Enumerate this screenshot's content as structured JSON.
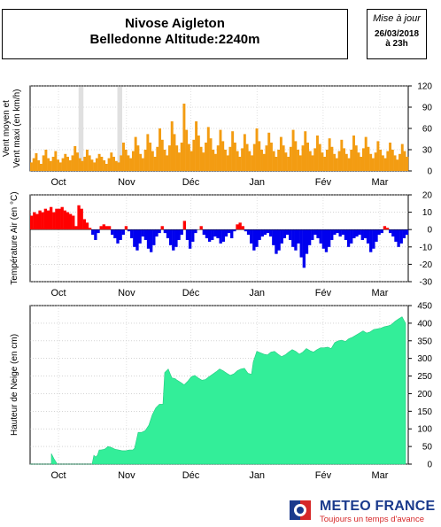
{
  "header": {
    "title_line1": "Nivose Aigleton",
    "title_line2": "Belledonne Altitude:2240m",
    "update_label": "Mise à jour",
    "update_date": "26/03/2018",
    "update_time": "à 23h"
  },
  "logo": {
    "name": "METEO FRANCE",
    "tagline": "Toujours un temps d'avance",
    "colors": {
      "blue": "#1a3a8c",
      "red": "#d62728"
    }
  },
  "chart_data": [
    {
      "type": "area",
      "ylabel": "Vent moyen et Vent maxi (en km/h)",
      "x_ticks": [
        "Oct",
        "Nov",
        "Déc",
        "Jan",
        "Fév",
        "Mar"
      ],
      "ylim": [
        0,
        120
      ],
      "y_ticks": [
        0,
        30,
        60,
        90,
        120
      ],
      "grid": true,
      "color": "#f39c12",
      "missing_data_bands": [
        [
          20,
          22
        ],
        [
          36,
          38
        ]
      ],
      "series": [
        {
          "values": [
            12,
            18,
            25,
            15,
            10,
            22,
            30,
            18,
            14,
            20,
            28,
            16,
            12,
            18,
            24,
            20,
            15,
            22,
            35,
            26,
            18,
            14,
            20,
            30,
            22,
            16,
            12,
            18,
            24,
            20,
            15,
            10,
            18,
            26,
            20,
            14,
            12,
            22,
            40,
            30,
            22,
            18,
            28,
            48,
            36,
            24,
            18,
            30,
            52,
            40,
            28,
            20,
            34,
            60,
            44,
            30,
            22,
            36,
            70,
            52,
            36,
            26,
            40,
            95,
            58,
            38,
            28,
            44,
            70,
            50,
            34,
            26,
            40,
            62,
            46,
            30,
            24,
            36,
            58,
            42,
            30,
            22,
            34,
            56,
            40,
            28,
            20,
            32,
            52,
            38,
            28,
            22,
            38,
            60,
            42,
            30,
            24,
            36,
            54,
            40,
            28,
            20,
            30,
            48,
            36,
            26,
            20,
            34,
            58,
            42,
            30,
            22,
            36,
            56,
            40,
            28,
            22,
            32,
            50,
            38,
            26,
            20,
            30,
            46,
            34,
            24,
            18,
            28,
            44,
            32,
            24,
            18,
            30,
            50,
            36,
            26,
            20,
            32,
            48,
            34,
            24,
            18,
            26,
            42,
            30,
            22,
            18,
            28,
            40,
            30,
            22,
            16,
            24,
            38,
            28,
            20
          ]
        }
      ]
    },
    {
      "type": "bar",
      "ylabel": "Température Air (en °C)",
      "x_ticks": [
        "Oct",
        "Nov",
        "Déc",
        "Jan",
        "Fév",
        "Mar"
      ],
      "ylim": [
        -30,
        20
      ],
      "y_ticks": [
        -30,
        -20,
        -10,
        0,
        10,
        20
      ],
      "grid": true,
      "colors": {
        "positive": "#ff0000",
        "negative": "#0000ee"
      },
      "values": [
        8,
        10,
        9,
        11,
        10,
        12,
        11,
        13,
        10,
        12,
        12,
        13,
        11,
        10,
        9,
        8,
        2,
        14,
        12,
        6,
        4,
        1,
        -3,
        -6,
        -2,
        2,
        3,
        2,
        2,
        -3,
        -5,
        -8,
        -6,
        -3,
        2,
        -1,
        -5,
        -10,
        -12,
        -8,
        -4,
        -6,
        -11,
        -13,
        -9,
        -4,
        -2,
        2,
        -2,
        -5,
        -9,
        -12,
        -10,
        -6,
        -3,
        5,
        -6,
        -11,
        -7,
        -2,
        0,
        2,
        -3,
        -5,
        -7,
        -6,
        -4,
        -5,
        -8,
        -7,
        -4,
        -2,
        -5,
        -1,
        3,
        4,
        2,
        -1,
        -3,
        -8,
        -12,
        -10,
        -6,
        -4,
        -3,
        -2,
        -4,
        -9,
        -14,
        -12,
        -8,
        -5,
        -3,
        -6,
        -10,
        -12,
        -8,
        -16,
        -22,
        -14,
        -9,
        -6,
        -3,
        -5,
        -8,
        -11,
        -13,
        -10,
        -6,
        -3,
        -2,
        -4,
        -3,
        -6,
        -10,
        -8,
        -5,
        -4,
        -3,
        -6,
        -5,
        -8,
        -13,
        -11,
        -7,
        -3,
        -2,
        2,
        1,
        -2,
        -4,
        -7,
        -10,
        -8,
        -5,
        -3
      ]
    },
    {
      "type": "area",
      "ylabel": "Hauteur de Neige (en cm)",
      "x_ticks": [
        "Oct",
        "Nov",
        "Déc",
        "Jan",
        "Fév",
        "Mar"
      ],
      "ylim": [
        0,
        450
      ],
      "y_ticks": [
        0,
        50,
        100,
        150,
        200,
        250,
        300,
        350,
        400,
        450
      ],
      "grid": true,
      "color": "#33ee99",
      "x": [
        0,
        24,
        24,
        27,
        30,
        30,
        33,
        36,
        40,
        44,
        48,
        52,
        56,
        60,
        63,
        66,
        70,
        72,
        74,
        76,
        78,
        80,
        84,
        88,
        92,
        96,
        100,
        104,
        108,
        112,
        116,
        118,
        122,
        126,
        130,
        134,
        138,
        142,
        146,
        150,
        152,
        156,
        160,
        164,
        166,
        170,
        174,
        178,
        182,
        186,
        190,
        194,
        198,
        202,
        206,
        210,
        214,
        218,
        222,
        226,
        230,
        234,
        238,
        242,
        246,
        250,
        252,
        256,
        260,
        264,
        268,
        272,
        276,
        280,
        284,
        288,
        292,
        296,
        300,
        304,
        308,
        312,
        316,
        320,
        324,
        328,
        332,
        336,
        340,
        344,
        348,
        352,
        356,
        360,
        364,
        368,
        372,
        376,
        380,
        384,
        388,
        392,
        396,
        400,
        404,
        408,
        412,
        416,
        420,
        424
      ],
      "y": [
        0,
        0,
        30,
        15,
        3,
        0,
        0,
        0,
        0,
        0,
        0,
        0,
        0,
        0,
        0,
        0,
        0,
        25,
        20,
        25,
        40,
        40,
        42,
        50,
        47,
        42,
        40,
        38,
        38,
        40,
        40,
        45,
        90,
        90,
        95,
        110,
        140,
        160,
        170,
        170,
        260,
        270,
        245,
        242,
        238,
        232,
        225,
        235,
        248,
        252,
        244,
        238,
        240,
        248,
        255,
        262,
        270,
        265,
        258,
        252,
        256,
        265,
        270,
        272,
        258,
        255,
        290,
        320,
        316,
        312,
        310,
        318,
        320,
        312,
        305,
        310,
        318,
        325,
        320,
        312,
        318,
        328,
        322,
        318,
        325,
        330,
        330,
        332,
        328,
        345,
        350,
        352,
        348,
        356,
        360,
        366,
        372,
        378,
        372,
        375,
        382,
        384,
        386,
        390,
        392,
        396,
        405,
        412,
        418,
        400
      ]
    }
  ]
}
